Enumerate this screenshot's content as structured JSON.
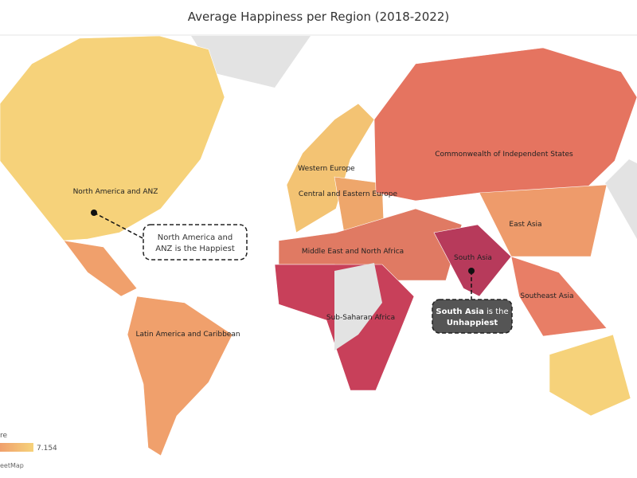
{
  "title": "Average Happiness per Region (2018-2022)",
  "regions": [
    {
      "label": "North America and ANZ",
      "color": "#f6d27a"
    },
    {
      "label": "Latin America and Caribbean",
      "color": "#f0a06c"
    },
    {
      "label": "Western Europe",
      "color": "#f3c373"
    },
    {
      "label": "Central and Eastern Europe",
      "color": "#eea66b"
    },
    {
      "label": "Commonwealth of Independent States",
      "color": "#e57460"
    },
    {
      "label": "Middle East and North Africa",
      "color": "#e07a63"
    },
    {
      "label": "Sub-Saharan Africa",
      "color": "#c8405a"
    },
    {
      "label": "South Asia",
      "color": "#b73a5b"
    },
    {
      "label": "East Asia",
      "color": "#ee9b6b"
    },
    {
      "label": "Southeast Asia",
      "color": "#e87e66"
    }
  ],
  "annotations": [
    {
      "lines": [
        [
          {
            "text": "North America and",
            "bold": false
          }
        ],
        [
          {
            "text": "ANZ",
            "bold": false
          },
          {
            "text": " is the ",
            "bold": false
          },
          {
            "text": "Happiest",
            "bold": false
          }
        ]
      ]
    },
    {
      "lines": [
        [
          {
            "text": "South Asia",
            "bold": true
          },
          {
            "text": " is the",
            "bold": false
          }
        ],
        [
          {
            "text": "Unhappiest",
            "bold": true
          }
        ]
      ]
    }
  ],
  "legend": {
    "title": "re",
    "max": "7.154"
  },
  "attribution": "eetMap"
}
